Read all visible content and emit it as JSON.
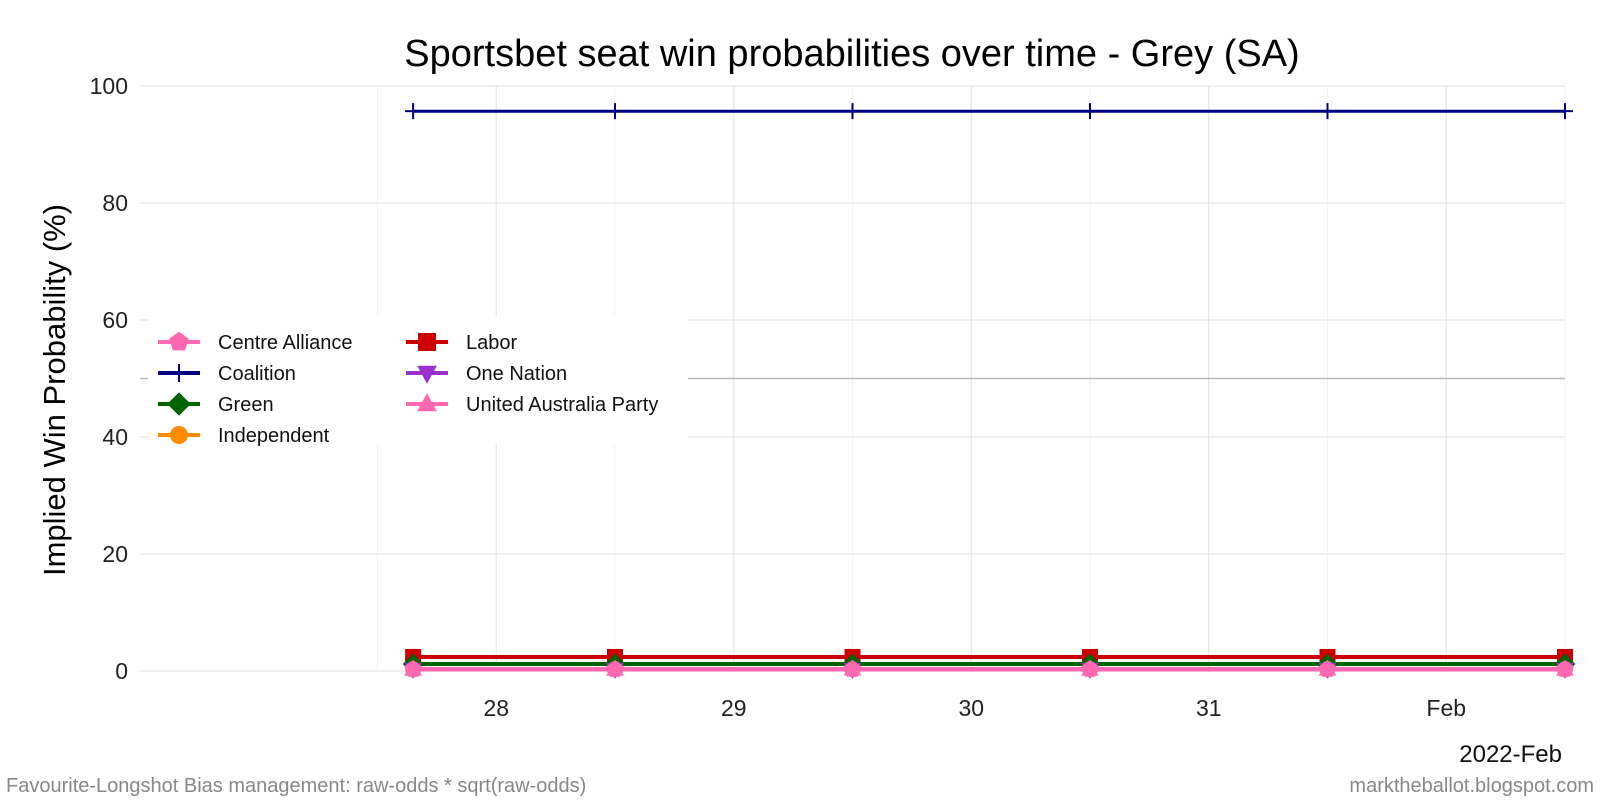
{
  "chart_data": {
    "type": "line",
    "title": "Sportsbet seat win probabilities over time - Grey (SA)",
    "xlabel": "",
    "ylabel": "Implied Win Probability (%)",
    "ylim": [
      0,
      100
    ],
    "yticks": [
      0,
      20,
      40,
      60,
      80,
      100
    ],
    "x_tick_labels": [
      "28",
      "29",
      "30",
      "31",
      "Feb"
    ],
    "x_sublabel": "2022-Feb",
    "x": [
      "2022-01-27",
      "2022-01-28",
      "2022-01-29",
      "2022-01-30",
      "2022-01-31",
      "2022-02-01"
    ],
    "reference_line_y": 50,
    "grid": true,
    "legend_placement": "middle-left",
    "series": [
      {
        "name": "Centre Alliance",
        "color": "#ff69b4",
        "marker": "pentagon",
        "values": [
          0.3,
          0.3,
          0.3,
          0.3,
          0.3,
          0.3
        ]
      },
      {
        "name": "Coalition",
        "color": "#000080",
        "marker": "plus",
        "values": [
          95.7,
          95.7,
          95.7,
          95.7,
          95.7,
          95.7
        ]
      },
      {
        "name": "Green",
        "color": "#006400",
        "marker": "diamond",
        "values": [
          1.2,
          1.2,
          1.2,
          1.2,
          1.2,
          1.2
        ]
      },
      {
        "name": "Independent",
        "color": "#ff8c00",
        "marker": "circle",
        "values": [
          0.3,
          0.3,
          0.3,
          0.3,
          0.3,
          0.3
        ]
      },
      {
        "name": "Labor",
        "color": "#cc0000",
        "marker": "square",
        "values": [
          2.4,
          2.4,
          2.4,
          2.4,
          2.4,
          2.4
        ]
      },
      {
        "name": "One Nation",
        "color": "#9932cc",
        "marker": "triangle-down",
        "values": [
          0.3,
          0.3,
          0.3,
          0.3,
          0.3,
          0.3
        ]
      },
      {
        "name": "United Australia Party",
        "color": "#ff69b4",
        "marker": "triangle-up",
        "values": [
          0.3,
          0.3,
          0.3,
          0.3,
          0.3,
          0.3
        ]
      }
    ]
  },
  "footer": {
    "left": "Favourite-Longshot Bias management: raw-odds * sqrt(raw-odds)",
    "right": "marktheballot.blogspot.com"
  }
}
